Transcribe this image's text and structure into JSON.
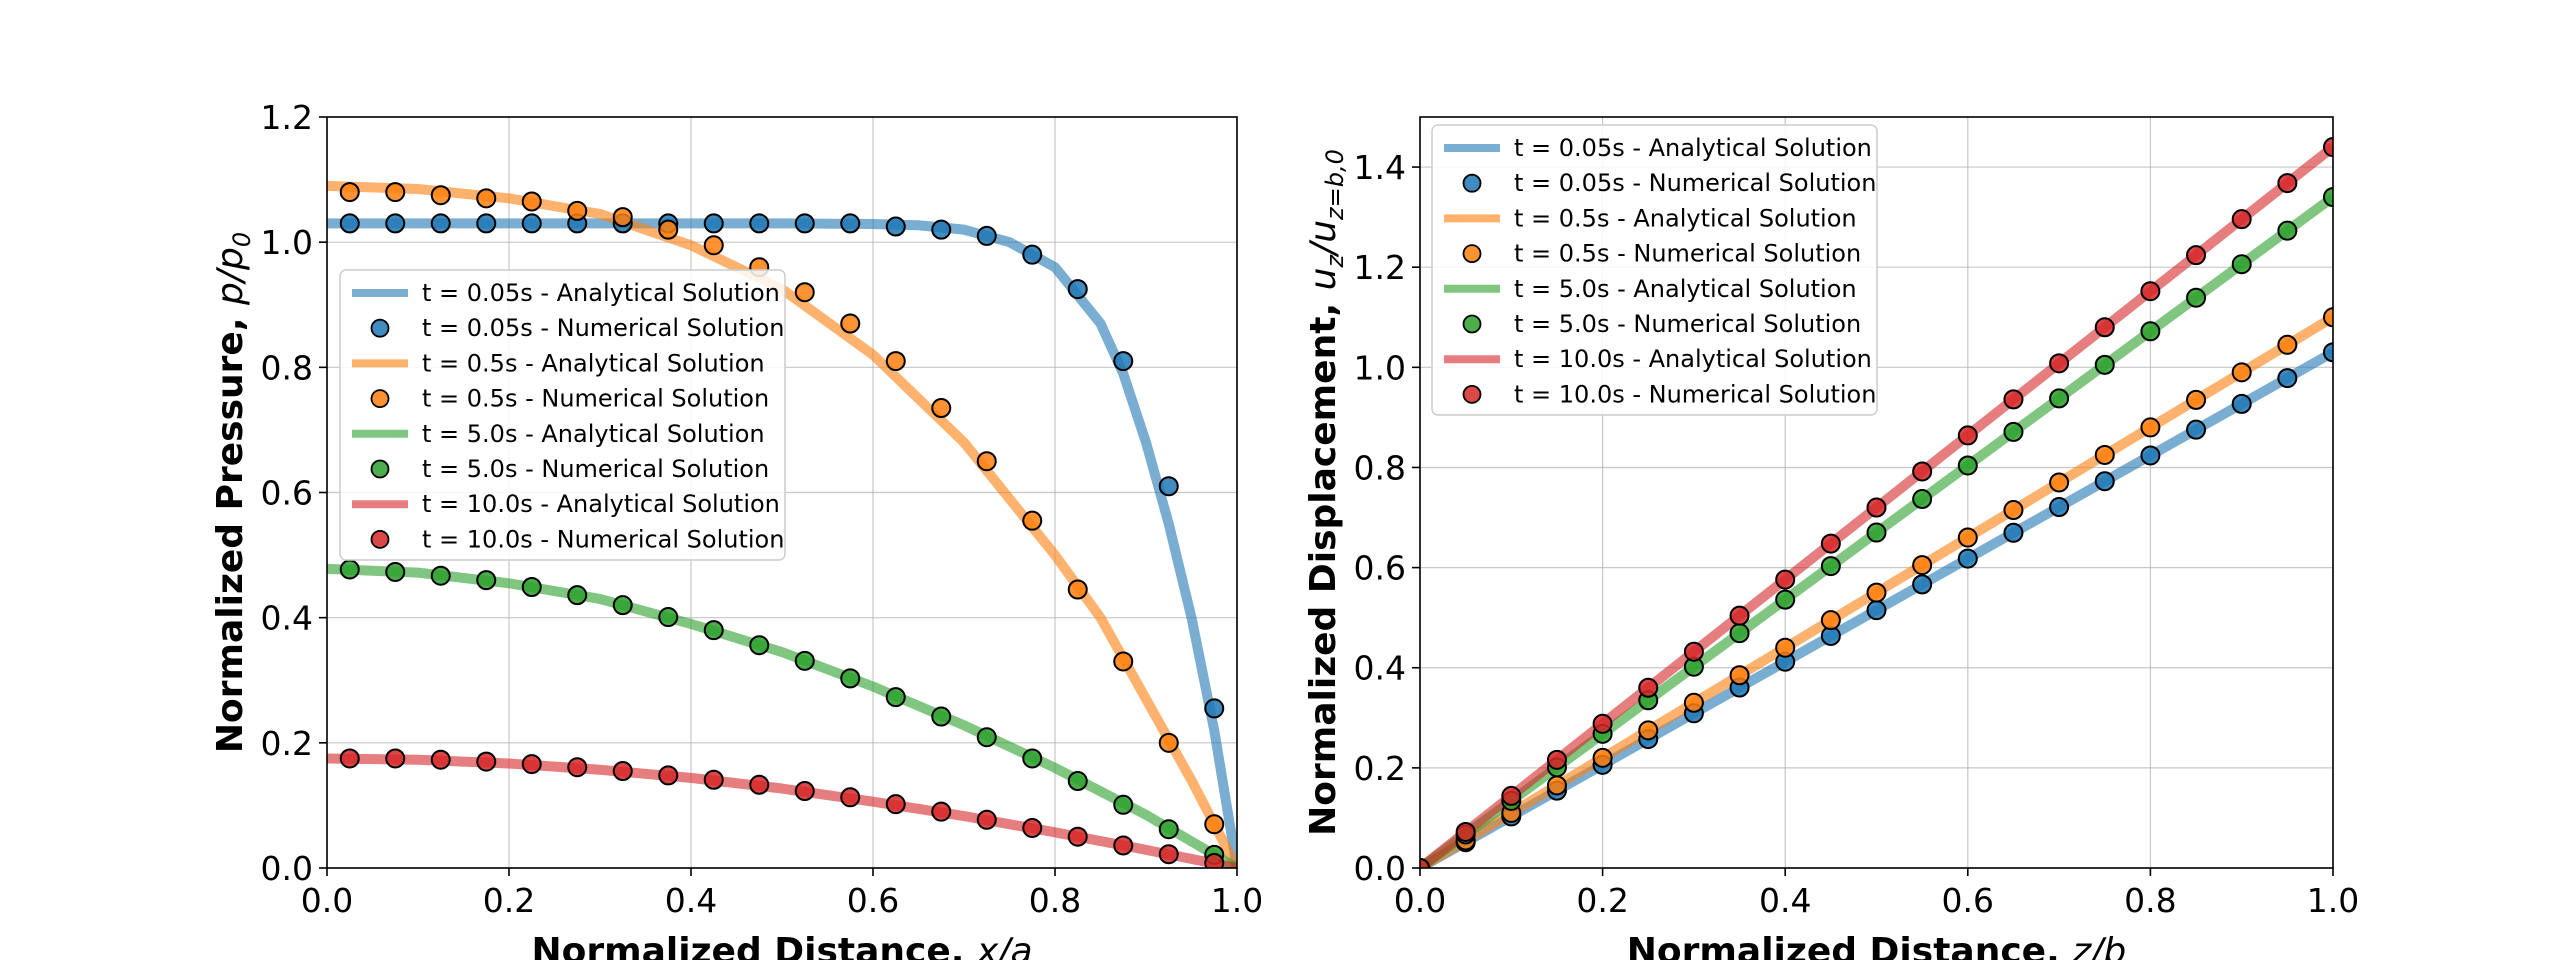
{
  "chart_data": [
    {
      "type": "line",
      "xlabel_prefix": "Normalized Distance, ",
      "xlabel_var": "x",
      "xlabel_suffix": "/a",
      "ylabel_prefix": "Normalized Pressure, ",
      "ylabel_var": "p/p",
      "ylabel_sub": "0",
      "xlim": [
        0,
        1
      ],
      "ylim": [
        0,
        1.2
      ],
      "xticks": [
        "0.0",
        "0.2",
        "0.4",
        "0.6",
        "0.8",
        "1.0"
      ],
      "yticks": [
        "0.0",
        "0.2",
        "0.4",
        "0.6",
        "0.8",
        "1.0",
        "1.2"
      ],
      "grid": true,
      "legend_position": "center-left",
      "series": [
        {
          "name": "t = 0.05s",
          "color": "#1f77b4",
          "analytical_label": "t = 0.05s - Analytical Solution",
          "numerical_label": "t = 0.05s - Numerical Solution",
          "x": [
            0,
            0.1,
            0.2,
            0.3,
            0.4,
            0.5,
            0.6,
            0.65,
            0.7,
            0.75,
            0.8,
            0.85,
            0.875,
            0.9,
            0.925,
            0.95,
            0.975,
            1.0
          ],
          "y": [
            1.03,
            1.03,
            1.03,
            1.03,
            1.03,
            1.03,
            1.029,
            1.027,
            1.02,
            1.0,
            0.96,
            0.87,
            0.79,
            0.68,
            0.55,
            0.4,
            0.22,
            0.0
          ],
          "points_x": [
            0.025,
            0.075,
            0.125,
            0.175,
            0.225,
            0.275,
            0.325,
            0.375,
            0.425,
            0.475,
            0.525,
            0.575,
            0.625,
            0.675,
            0.725,
            0.775,
            0.825,
            0.875,
            0.925,
            0.975
          ],
          "points_y": [
            1.03,
            1.03,
            1.03,
            1.03,
            1.03,
            1.03,
            1.03,
            1.03,
            1.03,
            1.03,
            1.03,
            1.03,
            1.025,
            1.02,
            1.01,
            0.98,
            0.925,
            0.81,
            0.61,
            0.255
          ]
        },
        {
          "name": "t = 0.5s",
          "color": "#ff7f0e",
          "analytical_label": "t = 0.5s - Analytical Solution",
          "numerical_label": "t = 0.5s - Numerical Solution",
          "x": [
            0,
            0.1,
            0.2,
            0.3,
            0.4,
            0.5,
            0.6,
            0.7,
            0.8,
            0.85,
            0.9,
            0.95,
            1.0
          ],
          "y": [
            1.09,
            1.085,
            1.07,
            1.045,
            0.995,
            0.925,
            0.82,
            0.68,
            0.5,
            0.4,
            0.27,
            0.14,
            0.0
          ],
          "points_x": [
            0.025,
            0.075,
            0.125,
            0.175,
            0.225,
            0.275,
            0.325,
            0.375,
            0.425,
            0.475,
            0.525,
            0.575,
            0.625,
            0.675,
            0.725,
            0.775,
            0.825,
            0.875,
            0.925,
            0.975
          ],
          "points_y": [
            1.08,
            1.08,
            1.075,
            1.07,
            1.065,
            1.05,
            1.04,
            1.02,
            0.995,
            0.96,
            0.92,
            0.87,
            0.81,
            0.735,
            0.65,
            0.555,
            0.445,
            0.33,
            0.2,
            0.07
          ]
        },
        {
          "name": "t = 5.0s",
          "color": "#2ca02c",
          "analytical_label": "t = 5.0s - Analytical Solution",
          "numerical_label": "t = 5.0s - Numerical Solution",
          "x": [
            0,
            0.1,
            0.2,
            0.3,
            0.4,
            0.5,
            0.6,
            0.7,
            0.8,
            0.9,
            1.0
          ],
          "y": [
            0.478,
            0.472,
            0.455,
            0.43,
            0.39,
            0.345,
            0.29,
            0.228,
            0.16,
            0.085,
            0.0
          ],
          "points_x": [
            0.025,
            0.075,
            0.125,
            0.175,
            0.225,
            0.275,
            0.325,
            0.375,
            0.425,
            0.475,
            0.525,
            0.575,
            0.625,
            0.675,
            0.725,
            0.775,
            0.825,
            0.875,
            0.925,
            0.975
          ],
          "points_y": [
            0.477,
            0.473,
            0.467,
            0.46,
            0.449,
            0.436,
            0.42,
            0.401,
            0.38,
            0.356,
            0.331,
            0.303,
            0.273,
            0.242,
            0.209,
            0.175,
            0.139,
            0.101,
            0.062,
            0.021
          ]
        },
        {
          "name": "t = 10.0s",
          "color": "#d62728",
          "analytical_label": "t = 10.0s - Analytical Solution",
          "numerical_label": "t = 10.0s - Numerical Solution",
          "x": [
            0,
            0.1,
            0.2,
            0.3,
            0.4,
            0.5,
            0.6,
            0.7,
            0.8,
            0.9,
            1.0
          ],
          "y": [
            0.175,
            0.173,
            0.167,
            0.157,
            0.144,
            0.127,
            0.106,
            0.083,
            0.057,
            0.029,
            0.0
          ],
          "points_x": [
            0.025,
            0.075,
            0.125,
            0.175,
            0.225,
            0.275,
            0.325,
            0.375,
            0.425,
            0.475,
            0.525,
            0.575,
            0.625,
            0.675,
            0.725,
            0.775,
            0.825,
            0.875,
            0.925,
            0.975
          ],
          "points_y": [
            0.175,
            0.175,
            0.173,
            0.17,
            0.166,
            0.161,
            0.155,
            0.148,
            0.141,
            0.133,
            0.123,
            0.113,
            0.102,
            0.09,
            0.077,
            0.064,
            0.05,
            0.036,
            0.022,
            0.008
          ]
        }
      ]
    },
    {
      "type": "line",
      "xlabel_prefix": "Normalized Distance, ",
      "xlabel_var": "z",
      "xlabel_suffix": "/b",
      "ylabel_prefix": "Normalized Displacement, ",
      "ylabel_var": "u",
      "ylabel_sub": "z",
      "ylabel_mid": "/u",
      "ylabel_sub2": "z=b,0",
      "xlim": [
        0,
        1
      ],
      "ylim": [
        0,
        1.5
      ],
      "xticks": [
        "0.0",
        "0.2",
        "0.4",
        "0.6",
        "0.8",
        "1.0"
      ],
      "yticks": [
        "0.0",
        "0.2",
        "0.4",
        "0.6",
        "0.8",
        "1.0",
        "1.2",
        "1.4"
      ],
      "grid": true,
      "legend_position": "top-left",
      "series": [
        {
          "name": "t = 0.05s",
          "color": "#1f77b4",
          "analytical_label": "t = 0.05s - Analytical Solution",
          "numerical_label": "t = 0.05s - Numerical Solution",
          "x": [
            0,
            1.0
          ],
          "y": [
            0,
            1.03
          ],
          "points_x": [
            0,
            0.05,
            0.1,
            0.15,
            0.2,
            0.25,
            0.3,
            0.35,
            0.4,
            0.45,
            0.5,
            0.55,
            0.6,
            0.65,
            0.7,
            0.75,
            0.8,
            0.85,
            0.9,
            0.95,
            1.0
          ],
          "points_y": [
            0,
            0.0515,
            0.103,
            0.1545,
            0.206,
            0.2575,
            0.309,
            0.3605,
            0.412,
            0.4635,
            0.515,
            0.5665,
            0.618,
            0.6695,
            0.721,
            0.7725,
            0.824,
            0.8755,
            0.927,
            0.9785,
            1.03
          ]
        },
        {
          "name": "t = 0.5s",
          "color": "#ff7f0e",
          "analytical_label": "t = 0.5s - Analytical Solution",
          "numerical_label": "t = 0.5s - Numerical Solution",
          "x": [
            0,
            1.0
          ],
          "y": [
            0,
            1.1
          ],
          "points_x": [
            0,
            0.05,
            0.1,
            0.15,
            0.2,
            0.25,
            0.3,
            0.35,
            0.4,
            0.45,
            0.5,
            0.55,
            0.6,
            0.65,
            0.7,
            0.75,
            0.8,
            0.85,
            0.9,
            0.95,
            1.0
          ],
          "points_y": [
            0,
            0.055,
            0.11,
            0.165,
            0.22,
            0.275,
            0.33,
            0.385,
            0.44,
            0.495,
            0.55,
            0.605,
            0.66,
            0.715,
            0.77,
            0.825,
            0.88,
            0.935,
            0.99,
            1.045,
            1.1
          ]
        },
        {
          "name": "t = 5.0s",
          "color": "#2ca02c",
          "analytical_label": "t = 5.0s - Analytical Solution",
          "numerical_label": "t = 5.0s - Numerical Solution",
          "x": [
            0,
            1.0
          ],
          "y": [
            0,
            1.34
          ],
          "points_x": [
            0,
            0.05,
            0.1,
            0.15,
            0.2,
            0.25,
            0.3,
            0.35,
            0.4,
            0.45,
            0.5,
            0.55,
            0.6,
            0.65,
            0.7,
            0.75,
            0.8,
            0.85,
            0.9,
            0.95,
            1.0
          ],
          "points_y": [
            0,
            0.067,
            0.134,
            0.201,
            0.268,
            0.335,
            0.402,
            0.469,
            0.536,
            0.603,
            0.67,
            0.737,
            0.804,
            0.871,
            0.938,
            1.005,
            1.072,
            1.139,
            1.206,
            1.273,
            1.34
          ]
        },
        {
          "name": "t = 10.0s",
          "color": "#d62728",
          "analytical_label": "t = 10.0s - Analytical Solution",
          "numerical_label": "t = 10.0s - Numerical Solution",
          "x": [
            0,
            1.0
          ],
          "y": [
            0,
            1.44
          ],
          "points_x": [
            0,
            0.05,
            0.1,
            0.15,
            0.2,
            0.25,
            0.3,
            0.35,
            0.4,
            0.45,
            0.5,
            0.55,
            0.6,
            0.65,
            0.7,
            0.75,
            0.8,
            0.85,
            0.9,
            0.95,
            1.0
          ],
          "points_y": [
            0,
            0.072,
            0.144,
            0.216,
            0.288,
            0.36,
            0.432,
            0.504,
            0.576,
            0.648,
            0.72,
            0.792,
            0.864,
            0.936,
            1.008,
            1.08,
            1.152,
            1.224,
            1.296,
            1.368,
            1.44
          ]
        }
      ]
    }
  ]
}
